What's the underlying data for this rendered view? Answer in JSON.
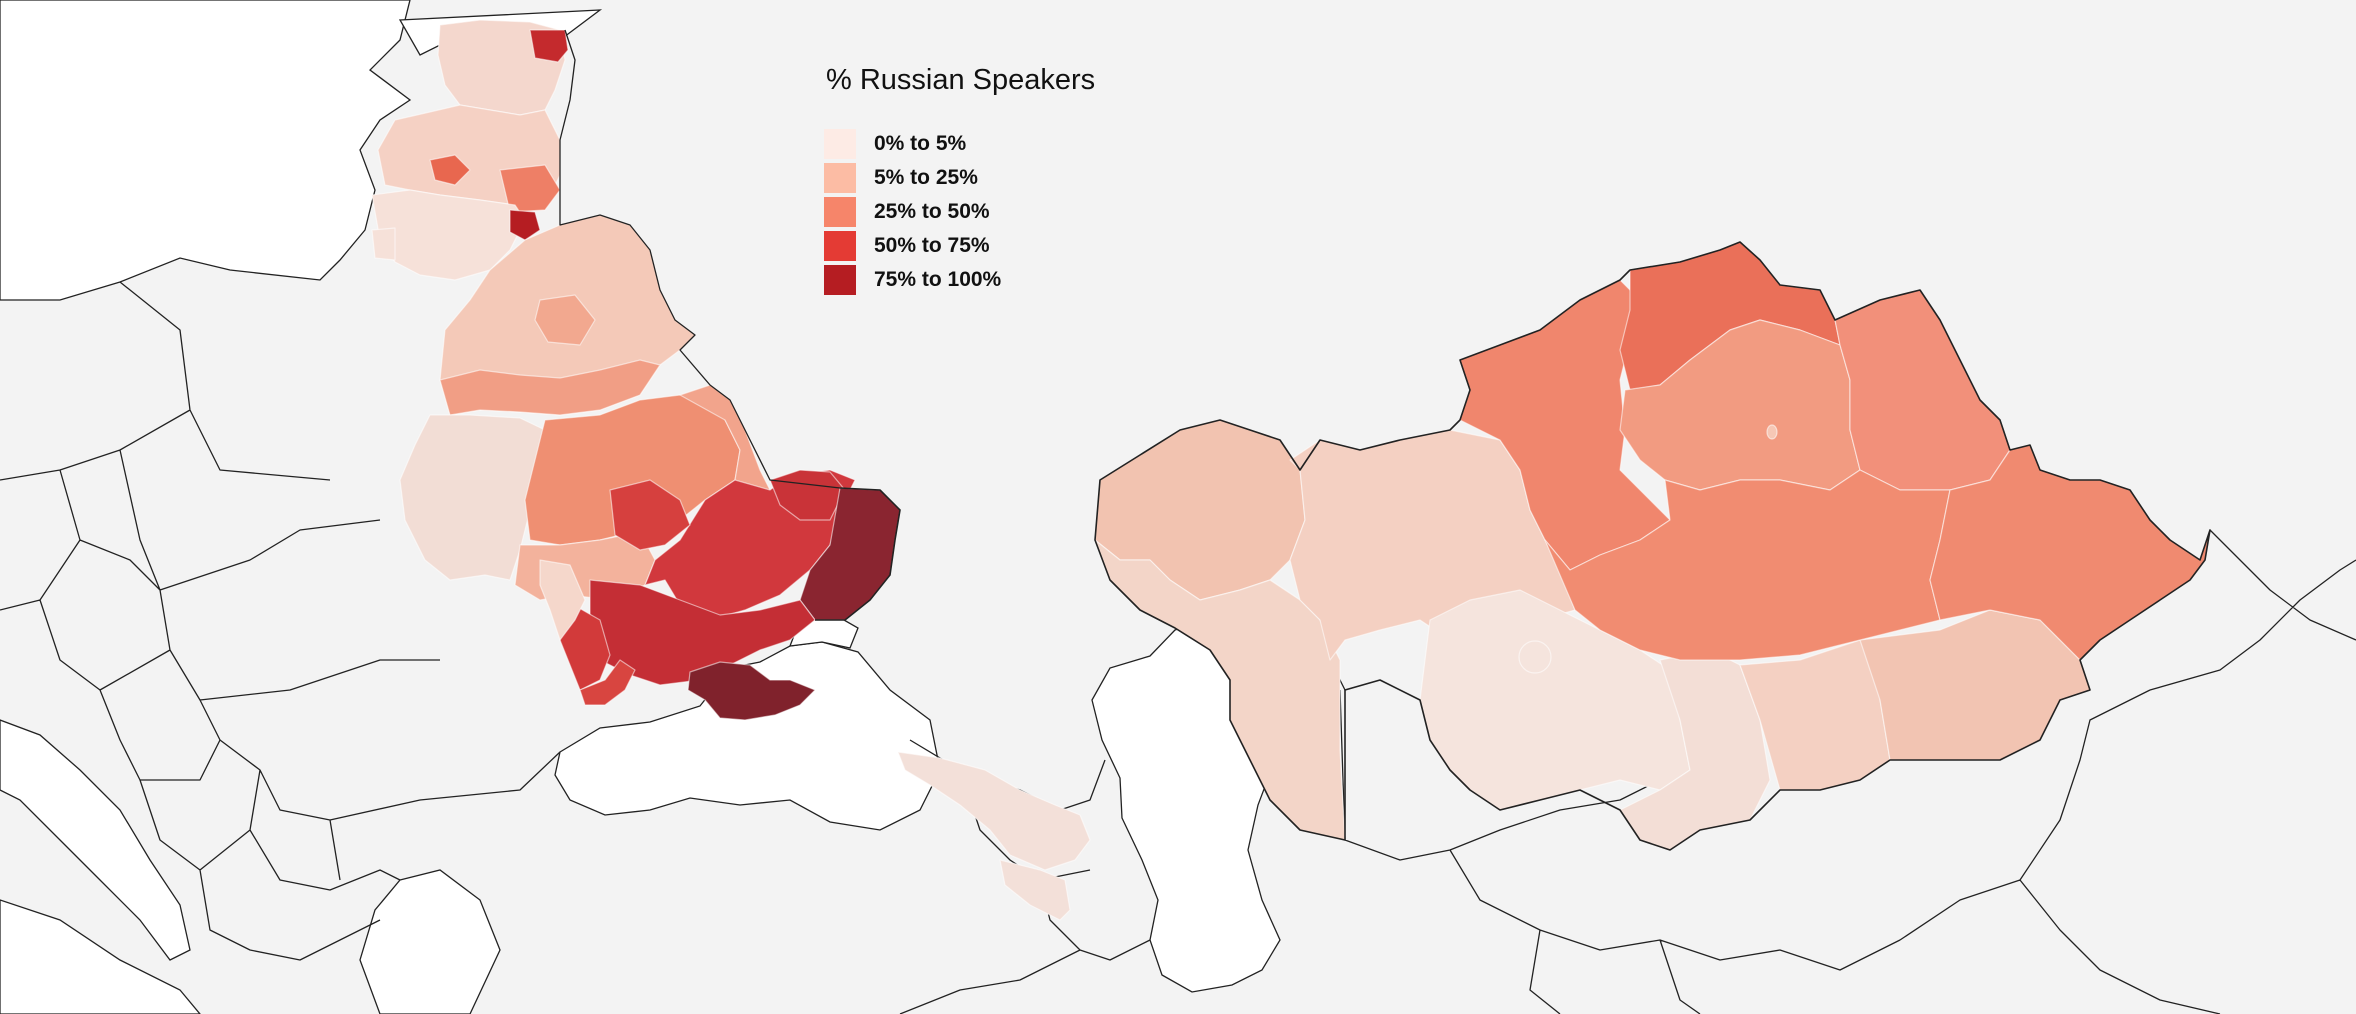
{
  "legend": {
    "title": "% Russian Speakers",
    "items": [
      {
        "label": "0% to 5%",
        "color": "#fdebe5"
      },
      {
        "label": "5% to 25%",
        "color": "#fcbca4"
      },
      {
        "label": "25% to 50%",
        "color": "#f6856a"
      },
      {
        "label": "50% to 75%",
        "color": "#e43b34"
      },
      {
        "label": "75% to 100%",
        "color": "#b51d22"
      }
    ]
  },
  "regions": {
    "estonia": {
      "class": "0% to 5%",
      "color": "#f4d7cd"
    },
    "estonia_northeast": {
      "class": "75% to 100%",
      "color": "#c42a2d"
    },
    "latvia": {
      "class": "5% to 25%",
      "color": "#f5d1c4"
    },
    "lithuania": {
      "class": "0% to 5%",
      "color": "#f6e1d9"
    },
    "belarus": {
      "class": "5% to 25%",
      "color": "#f4c9b8"
    },
    "belarus_south": {
      "class": "25% to 50%",
      "color": "#f19e85"
    },
    "ukraine_west": {
      "class": "0% to 5%",
      "color": "#f2ddd5"
    },
    "ukraine_central": {
      "class": "25% to 50%",
      "color": "#ef8f72"
    },
    "ukraine_east": {
      "class": "50% to 75%",
      "color": "#d1383d"
    },
    "ukraine_southeast": {
      "class": "75% to 100%",
      "color": "#8a2530"
    },
    "crimea": {
      "class": "75% to 100%",
      "color": "#80222c"
    },
    "kazakhstan_north": {
      "class": "25% to 50%",
      "color": "#f0846d"
    },
    "kazakhstan_west": {
      "class": "5% to 25%",
      "color": "#f2c3b0"
    },
    "kazakhstan_south": {
      "class": "0% to 5%",
      "color": "#f5e4dd"
    },
    "caucasus": {
      "class": "0% to 5%",
      "color": "#f3e0d9"
    }
  }
}
